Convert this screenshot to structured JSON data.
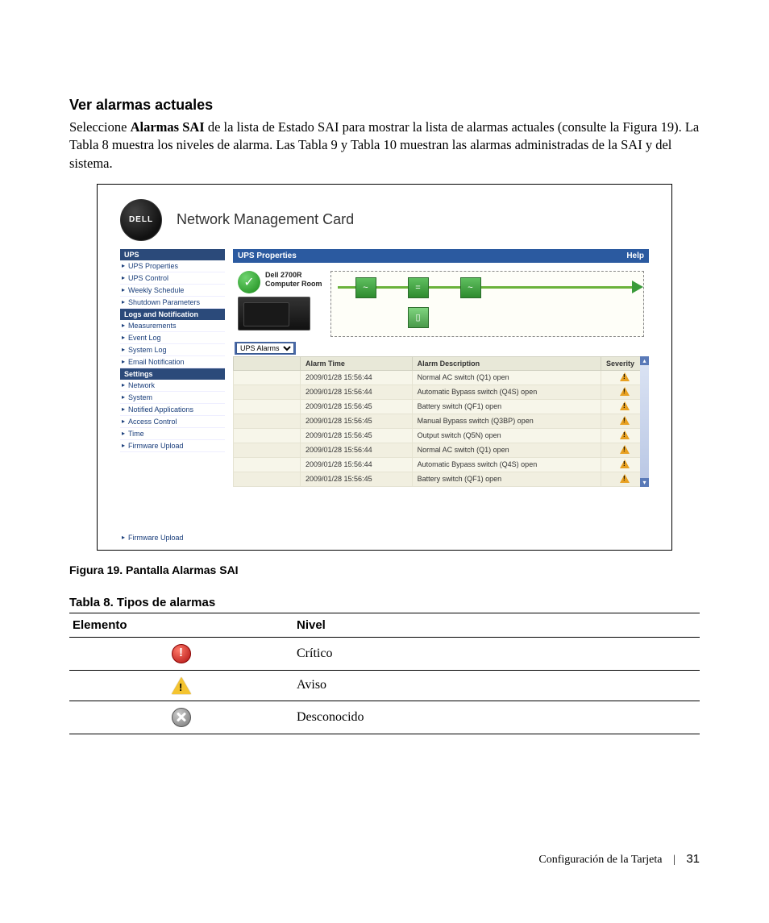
{
  "section_title": "Ver alarmas actuales",
  "body_html": "Seleccione <b>Alarmas SAI</b> de la lista de Estado SAI para mostrar la lista de alarmas actuales (consulte la Figura 19). La Tabla 8 muestra los niveles de alarma. Las Tabla 9 y Tabla 10 muestran las alarmas administradas de la SAI y del sistema.",
  "app": {
    "logo_text": "DELL",
    "title": "Network Management Card",
    "titlebar_left": "UPS Properties",
    "titlebar_right": "Help",
    "device_name": "Dell 2700R",
    "device_loc": "Computer Room",
    "dropdown_label": "UPS Alarms",
    "sidebar": [
      {
        "type": "head",
        "label": "UPS"
      },
      {
        "type": "link",
        "label": "UPS Properties"
      },
      {
        "type": "link",
        "label": "UPS Control"
      },
      {
        "type": "link",
        "label": "Weekly Schedule"
      },
      {
        "type": "link",
        "label": "Shutdown Parameters"
      },
      {
        "type": "head",
        "label": "Logs and Notification"
      },
      {
        "type": "link",
        "label": "Measurements"
      },
      {
        "type": "link",
        "label": "Event Log"
      },
      {
        "type": "link",
        "label": "System Log"
      },
      {
        "type": "link",
        "label": "Email Notification"
      },
      {
        "type": "head",
        "label": "Settings"
      },
      {
        "type": "link",
        "label": "Network"
      },
      {
        "type": "link",
        "label": "System"
      },
      {
        "type": "link",
        "label": "Notified Applications"
      },
      {
        "type": "link",
        "label": "Access Control"
      },
      {
        "type": "link",
        "label": "Time"
      },
      {
        "type": "link",
        "label": "Firmware Upload"
      }
    ],
    "orphan_link": "Firmware Upload",
    "alarm_headers": {
      "time": "Alarm Time",
      "desc": "Alarm Description",
      "sev": "Severity"
    },
    "alarms": [
      {
        "t": "2009/01/28 15:56:44",
        "d": "Normal AC switch (Q1) open"
      },
      {
        "t": "2009/01/28 15:56:44",
        "d": "Automatic Bypass switch (Q4S) open"
      },
      {
        "t": "2009/01/28 15:56:45",
        "d": "Battery switch (QF1) open"
      },
      {
        "t": "2009/01/28 15:56:45",
        "d": "Manual Bypass switch (Q3BP) open"
      },
      {
        "t": "2009/01/28 15:56:45",
        "d": "Output switch (Q5N) open"
      },
      {
        "t": "2009/01/28 15:56:44",
        "d": "Normal AC switch (Q1) open"
      },
      {
        "t": "2009/01/28 15:56:44",
        "d": "Automatic Bypass switch (Q4S) open"
      },
      {
        "t": "2009/01/28 15:56:45",
        "d": "Battery switch (QF1) open"
      }
    ]
  },
  "fig_caption": "Figura 19. Pantalla Alarmas SAI",
  "tbl_caption": "Tabla 8. Tipos de alarmas",
  "levels": {
    "h1": "Elemento",
    "h2": "Nivel",
    "rows": [
      {
        "icon": "crit",
        "label": "Crítico"
      },
      {
        "icon": "warn",
        "label": "Aviso"
      },
      {
        "icon": "unk",
        "label": "Desconocido"
      }
    ]
  },
  "footer": {
    "section": "Configuración de la Tarjeta",
    "page": "31"
  }
}
